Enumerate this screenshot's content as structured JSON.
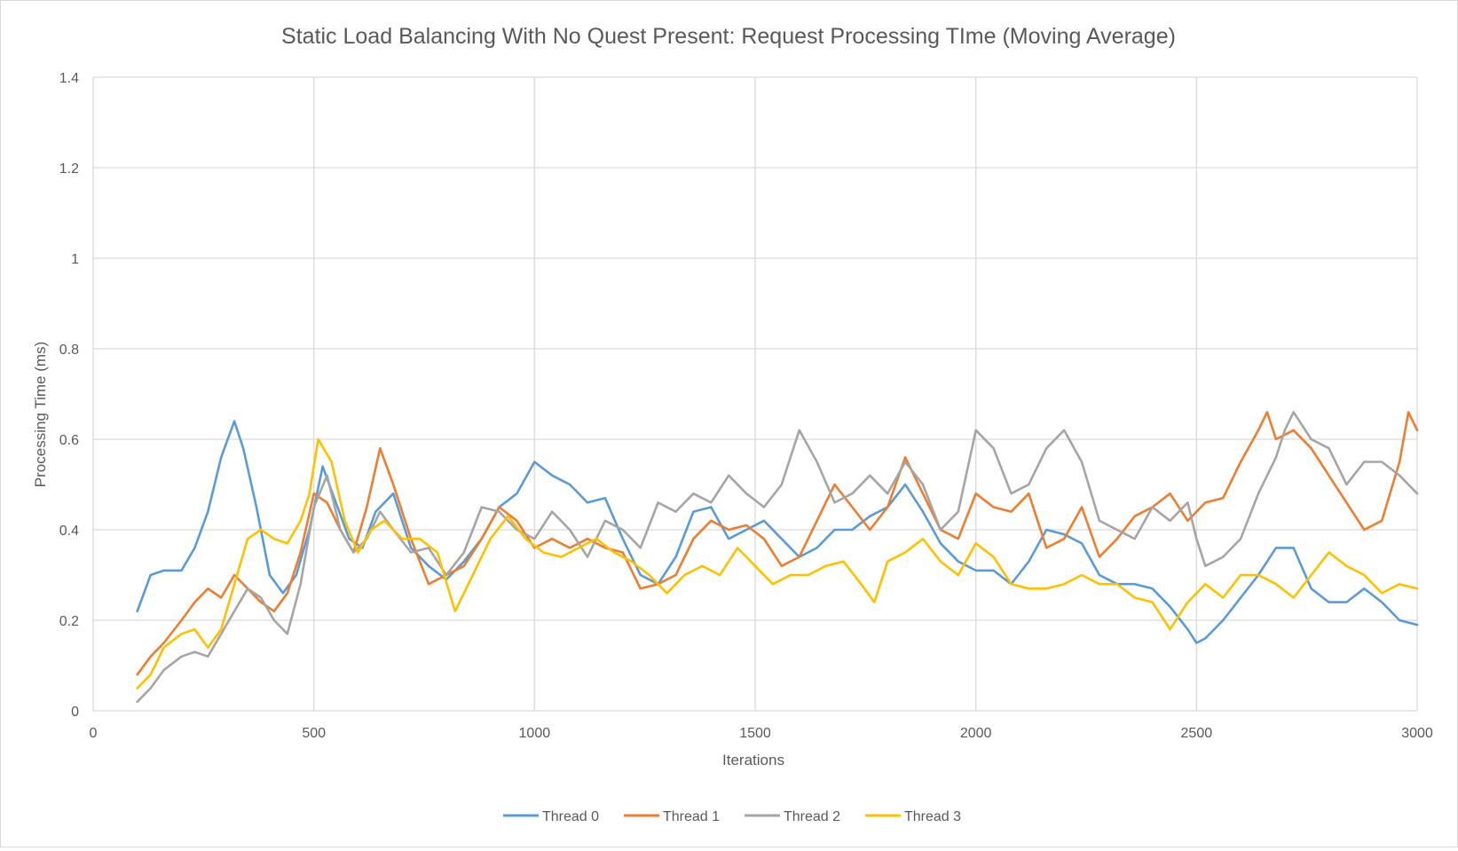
{
  "chart_data": {
    "type": "line",
    "title": "Static Load Balancing With No Quest Present: Request Processing TIme (Moving Average)",
    "xlabel": "Iterations",
    "ylabel": "Processing Time (ms)",
    "xlim": [
      0,
      3000
    ],
    "ylim": [
      0,
      1.4
    ],
    "x_ticks": [
      "0",
      "500",
      "1000",
      "1500",
      "2000",
      "2500",
      "3000"
    ],
    "y_ticks": [
      "0",
      "0.2",
      "0.4",
      "0.6",
      "0.8",
      "1",
      "1.2",
      "1.4"
    ],
    "grid": true,
    "legend_position": "bottom",
    "series": [
      {
        "name": "Thread 0",
        "color": "#5b9bd5",
        "x": [
          100,
          130,
          160,
          200,
          230,
          260,
          290,
          320,
          340,
          370,
          400,
          430,
          460,
          490,
          520,
          550,
          580,
          610,
          640,
          680,
          720,
          760,
          800,
          840,
          880,
          920,
          960,
          1000,
          1040,
          1080,
          1120,
          1160,
          1200,
          1240,
          1280,
          1320,
          1360,
          1400,
          1440,
          1480,
          1520,
          1560,
          1600,
          1640,
          1680,
          1720,
          1760,
          1800,
          1840,
          1880,
          1920,
          1960,
          2000,
          2040,
          2080,
          2120,
          2160,
          2200,
          2240,
          2280,
          2320,
          2360,
          2400,
          2440,
          2480,
          2500,
          2520,
          2560,
          2600,
          2640,
          2680,
          2720,
          2760,
          2800,
          2840,
          2880,
          2920,
          2960,
          3000
        ],
        "y": [
          0.22,
          0.3,
          0.31,
          0.31,
          0.36,
          0.44,
          0.56,
          0.64,
          0.58,
          0.45,
          0.3,
          0.26,
          0.3,
          0.4,
          0.54,
          0.46,
          0.38,
          0.36,
          0.44,
          0.48,
          0.36,
          0.32,
          0.29,
          0.33,
          0.38,
          0.45,
          0.48,
          0.55,
          0.52,
          0.5,
          0.46,
          0.47,
          0.38,
          0.3,
          0.28,
          0.34,
          0.44,
          0.45,
          0.38,
          0.4,
          0.42,
          0.38,
          0.34,
          0.36,
          0.4,
          0.4,
          0.43,
          0.45,
          0.5,
          0.44,
          0.37,
          0.33,
          0.31,
          0.31,
          0.28,
          0.33,
          0.4,
          0.39,
          0.37,
          0.3,
          0.28,
          0.28,
          0.27,
          0.23,
          0.18,
          0.15,
          0.16,
          0.2,
          0.25,
          0.3,
          0.36,
          0.36,
          0.27,
          0.24,
          0.24,
          0.27,
          0.24,
          0.2,
          0.19
        ]
      },
      {
        "name": "Thread 1",
        "color": "#ed7d31",
        "x": [
          100,
          130,
          160,
          200,
          230,
          260,
          290,
          320,
          350,
          380,
          410,
          440,
          470,
          500,
          530,
          560,
          590,
          620,
          650,
          680,
          720,
          760,
          800,
          840,
          880,
          920,
          960,
          1000,
          1040,
          1080,
          1120,
          1160,
          1200,
          1240,
          1280,
          1320,
          1360,
          1400,
          1440,
          1480,
          1520,
          1560,
          1600,
          1640,
          1680,
          1720,
          1760,
          1800,
          1840,
          1880,
          1920,
          1960,
          2000,
          2040,
          2080,
          2120,
          2160,
          2200,
          2240,
          2280,
          2320,
          2360,
          2400,
          2440,
          2480,
          2520,
          2560,
          2600,
          2640,
          2660,
          2680,
          2720,
          2760,
          2800,
          2840,
          2880,
          2920,
          2960,
          2980,
          3000
        ],
        "y": [
          0.08,
          0.12,
          0.15,
          0.2,
          0.24,
          0.27,
          0.25,
          0.3,
          0.27,
          0.24,
          0.22,
          0.26,
          0.35,
          0.48,
          0.46,
          0.4,
          0.35,
          0.45,
          0.58,
          0.5,
          0.38,
          0.28,
          0.3,
          0.32,
          0.38,
          0.45,
          0.42,
          0.36,
          0.38,
          0.36,
          0.38,
          0.36,
          0.35,
          0.27,
          0.28,
          0.3,
          0.38,
          0.42,
          0.4,
          0.41,
          0.38,
          0.32,
          0.34,
          0.42,
          0.5,
          0.45,
          0.4,
          0.45,
          0.56,
          0.48,
          0.4,
          0.38,
          0.48,
          0.45,
          0.44,
          0.48,
          0.36,
          0.38,
          0.45,
          0.34,
          0.38,
          0.43,
          0.45,
          0.48,
          0.42,
          0.46,
          0.47,
          0.55,
          0.62,
          0.66,
          0.6,
          0.62,
          0.58,
          0.52,
          0.46,
          0.4,
          0.42,
          0.55,
          0.66,
          0.62
        ]
      },
      {
        "name": "Thread 2",
        "color": "#a5a5a5",
        "x": [
          100,
          130,
          160,
          200,
          230,
          260,
          290,
          320,
          350,
          380,
          410,
          440,
          470,
          500,
          530,
          560,
          590,
          620,
          650,
          680,
          720,
          760,
          800,
          840,
          880,
          920,
          960,
          1000,
          1040,
          1080,
          1120,
          1160,
          1200,
          1240,
          1280,
          1320,
          1360,
          1400,
          1440,
          1480,
          1520,
          1560,
          1600,
          1640,
          1680,
          1720,
          1760,
          1800,
          1840,
          1880,
          1920,
          1960,
          2000,
          2040,
          2080,
          2120,
          2160,
          2200,
          2240,
          2280,
          2320,
          2360,
          2400,
          2440,
          2480,
          2500,
          2520,
          2560,
          2600,
          2640,
          2680,
          2700,
          2720,
          2760,
          2800,
          2840,
          2880,
          2920,
          2960,
          3000
        ],
        "y": [
          0.02,
          0.05,
          0.09,
          0.12,
          0.13,
          0.12,
          0.17,
          0.22,
          0.27,
          0.25,
          0.2,
          0.17,
          0.28,
          0.45,
          0.52,
          0.4,
          0.35,
          0.38,
          0.44,
          0.4,
          0.35,
          0.36,
          0.3,
          0.35,
          0.45,
          0.44,
          0.4,
          0.38,
          0.44,
          0.4,
          0.34,
          0.42,
          0.4,
          0.36,
          0.46,
          0.44,
          0.48,
          0.46,
          0.52,
          0.48,
          0.45,
          0.5,
          0.62,
          0.55,
          0.46,
          0.48,
          0.52,
          0.48,
          0.55,
          0.5,
          0.4,
          0.44,
          0.62,
          0.58,
          0.48,
          0.5,
          0.58,
          0.62,
          0.55,
          0.42,
          0.4,
          0.38,
          0.45,
          0.42,
          0.46,
          0.38,
          0.32,
          0.34,
          0.38,
          0.48,
          0.56,
          0.62,
          0.66,
          0.6,
          0.58,
          0.5,
          0.55,
          0.55,
          0.52,
          0.48
        ]
      },
      {
        "name": "Thread 3",
        "color": "#ffc000",
        "x": [
          100,
          130,
          160,
          200,
          230,
          260,
          290,
          320,
          350,
          380,
          410,
          440,
          470,
          490,
          510,
          540,
          570,
          600,
          630,
          660,
          700,
          740,
          780,
          820,
          860,
          900,
          940,
          980,
          1020,
          1060,
          1100,
          1140,
          1180,
          1220,
          1260,
          1300,
          1340,
          1380,
          1420,
          1460,
          1500,
          1540,
          1580,
          1620,
          1660,
          1700,
          1740,
          1770,
          1800,
          1840,
          1880,
          1920,
          1960,
          2000,
          2040,
          2080,
          2120,
          2160,
          2200,
          2240,
          2280,
          2320,
          2360,
          2400,
          2440,
          2480,
          2520,
          2560,
          2600,
          2640,
          2680,
          2720,
          2760,
          2800,
          2840,
          2880,
          2920,
          2960,
          3000
        ],
        "y": [
          0.05,
          0.08,
          0.14,
          0.17,
          0.18,
          0.14,
          0.18,
          0.28,
          0.38,
          0.4,
          0.38,
          0.37,
          0.42,
          0.48,
          0.6,
          0.55,
          0.42,
          0.35,
          0.4,
          0.42,
          0.38,
          0.38,
          0.35,
          0.22,
          0.3,
          0.38,
          0.43,
          0.38,
          0.35,
          0.34,
          0.36,
          0.38,
          0.35,
          0.33,
          0.3,
          0.26,
          0.3,
          0.32,
          0.3,
          0.36,
          0.32,
          0.28,
          0.3,
          0.3,
          0.32,
          0.33,
          0.28,
          0.24,
          0.33,
          0.35,
          0.38,
          0.33,
          0.3,
          0.37,
          0.34,
          0.28,
          0.27,
          0.27,
          0.28,
          0.3,
          0.28,
          0.28,
          0.25,
          0.24,
          0.18,
          0.24,
          0.28,
          0.25,
          0.3,
          0.3,
          0.28,
          0.25,
          0.3,
          0.35,
          0.32,
          0.3,
          0.26,
          0.28,
          0.27
        ]
      }
    ]
  }
}
